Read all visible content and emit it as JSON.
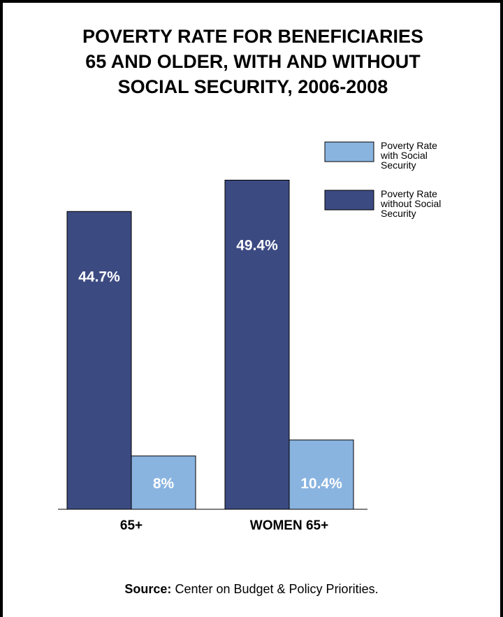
{
  "title_lines": [
    "POVERTY RATE FOR BENEFICIARIES",
    "65 AND OLDER, WITH AND WITHOUT",
    "SOCIAL SECURITY, 2006-2008"
  ],
  "source": {
    "label": "Source:",
    "text": " Center on Budget & Policy Priorities."
  },
  "chart_data": {
    "type": "bar",
    "title": "POVERTY RATE FOR BENEFICIARIES 65 AND OLDER, WITH AND WITHOUT SOCIAL SECURITY, 2006-2008",
    "categories": [
      "65+",
      "WOMEN 65+"
    ],
    "series": [
      {
        "name": "Poverty Rate without Social Security",
        "values": [
          44.7,
          49.4
        ],
        "labels": [
          "44.7%",
          "49.4%"
        ],
        "color": "#3c4a82"
      },
      {
        "name": "Poverty Rate with Social Security",
        "values": [
          8,
          10.4
        ],
        "labels": [
          "8%",
          "10.4%"
        ],
        "color": "#8ab4e0"
      }
    ],
    "legend": {
      "placement": "top-right",
      "entries": [
        {
          "lines": [
            "Poverty Rate",
            "with Social",
            "Security"
          ],
          "color": "#8ab4e0"
        },
        {
          "lines": [
            "Poverty Rate",
            "without Social",
            "Security"
          ],
          "color": "#3c4a82"
        }
      ]
    },
    "ylim": [
      0,
      50
    ],
    "grid": false,
    "xlabel": "",
    "ylabel": ""
  }
}
